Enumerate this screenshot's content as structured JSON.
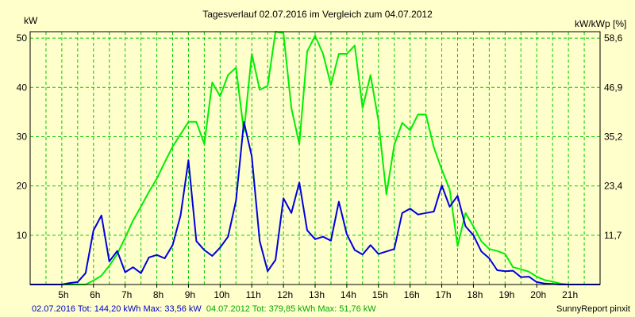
{
  "chart_data": {
    "type": "line",
    "title": "Tagesverlauf 02.07.2016 im Vergleich zum 04.07.2012",
    "ylabel_left": "kW",
    "ylabel_right": "kW/kWp [%]",
    "x_ticks": [
      "5h",
      "6h",
      "7h",
      "8h",
      "9h",
      "10h",
      "11h",
      "12h",
      "13h",
      "14h",
      "15h",
      "16h",
      "17h",
      "18h",
      "19h",
      "20h",
      "21h"
    ],
    "x_range": [
      4,
      22
    ],
    "y_left_ticks": [
      "10",
      "20",
      "30",
      "40",
      "50"
    ],
    "y_left_range": [
      0,
      51.3
    ],
    "y_right_ticks": [
      "11,7",
      "23,4",
      "35,2",
      "46,9",
      "58,6"
    ],
    "grid": true,
    "series": [
      {
        "color": "#0000dd",
        "x": [
          4,
          4.5,
          5,
          5.25,
          5.5,
          5.75,
          6,
          6.25,
          6.5,
          6.75,
          7,
          7.25,
          7.5,
          7.75,
          8,
          8.25,
          8.5,
          8.75,
          9,
          9.25,
          9.5,
          9.75,
          10,
          10.25,
          10.5,
          10.75,
          11,
          11.25,
          11.5,
          11.75,
          12,
          12.25,
          12.5,
          12.75,
          13,
          13.25,
          13.5,
          13.75,
          14,
          14.25,
          14.5,
          14.75,
          15,
          15.25,
          15.5,
          15.75,
          16,
          16.25,
          16.5,
          16.75,
          17,
          17.25,
          17.5,
          17.75,
          18,
          18.25,
          18.5,
          18.75,
          19,
          19.25,
          19.5,
          19.75,
          20,
          20.25,
          20.5,
          20.75,
          21,
          21.5,
          22
        ],
        "y": [
          0,
          0,
          0,
          0.3,
          0.5,
          2.3,
          11,
          14,
          4.7,
          6.8,
          2.5,
          3.5,
          2.3,
          5.5,
          6,
          5.3,
          8,
          14,
          25.2,
          8.8,
          7,
          5.8,
          7.5,
          9.7,
          17,
          33,
          26,
          8.8,
          2.7,
          5,
          17.5,
          14.5,
          20.7,
          11,
          9.2,
          9.7,
          8.9,
          16.8,
          10.2,
          7,
          6.1,
          8,
          6.2,
          6.7,
          7.2,
          14.5,
          15.4,
          14.2,
          14.5,
          14.8,
          20.1,
          15.8,
          18,
          11.8,
          10,
          6.7,
          5.3,
          2.9,
          2.7,
          2.8,
          1.5,
          1.6,
          0.5,
          0.2,
          0.1,
          0,
          0,
          0,
          0
        ]
      },
      {
        "color": "#00ee00",
        "x": [
          4,
          5,
          5.75,
          6,
          6.25,
          6.5,
          6.75,
          7,
          7.25,
          7.5,
          7.75,
          8,
          8.25,
          8.5,
          8.75,
          9,
          9.25,
          9.5,
          9.75,
          10,
          10.25,
          10.5,
          10.75,
          11,
          11.25,
          11.5,
          11.75,
          12,
          12.25,
          12.5,
          12.75,
          13,
          13.25,
          13.5,
          13.75,
          14,
          14.25,
          14.5,
          14.75,
          15,
          15.25,
          15.5,
          15.75,
          16,
          16.25,
          16.5,
          16.75,
          17,
          17.25,
          17.5,
          17.75,
          18,
          18.25,
          18.5,
          18.75,
          19,
          19.25,
          19.5,
          19.75,
          20,
          20.25,
          20.5,
          20.75,
          21,
          21.5,
          22
        ],
        "y": [
          0,
          0,
          0,
          0.8,
          1.8,
          3.8,
          6.2,
          9.5,
          13,
          15.8,
          18.8,
          21.5,
          24.8,
          28,
          30.5,
          33,
          33,
          28.5,
          41,
          38.2,
          42.5,
          44,
          31,
          46.8,
          39.5,
          40.3,
          51.3,
          51,
          35.8,
          28.5,
          47.3,
          50.5,
          46.8,
          40.5,
          46.8,
          46.8,
          48.5,
          35.8,
          42.5,
          33.2,
          18.3,
          28.3,
          32.8,
          31.3,
          34.5,
          34.5,
          27.8,
          23.3,
          19.3,
          7.8,
          14.5,
          11.8,
          8.8,
          7.2,
          6.8,
          6.2,
          3.5,
          3.1,
          2.6,
          1.6,
          0.9,
          0.6,
          0.2,
          0,
          0,
          0
        ]
      }
    ],
    "footer_left_1": "02.07.2016 Tot: 144,20 kWh Max: 33,56 kW",
    "footer_left_2": "04.07.2012 Tot: 379,85 kWh Max: 51,76 kW",
    "footer_right": "SunnyReport pinxit",
    "colors": {
      "background": "#ffffcc",
      "plot_background": "#ffffcc",
      "grid": "#00cc00",
      "footer_1": "#0000cc",
      "footer_2": "#00aa00"
    }
  }
}
